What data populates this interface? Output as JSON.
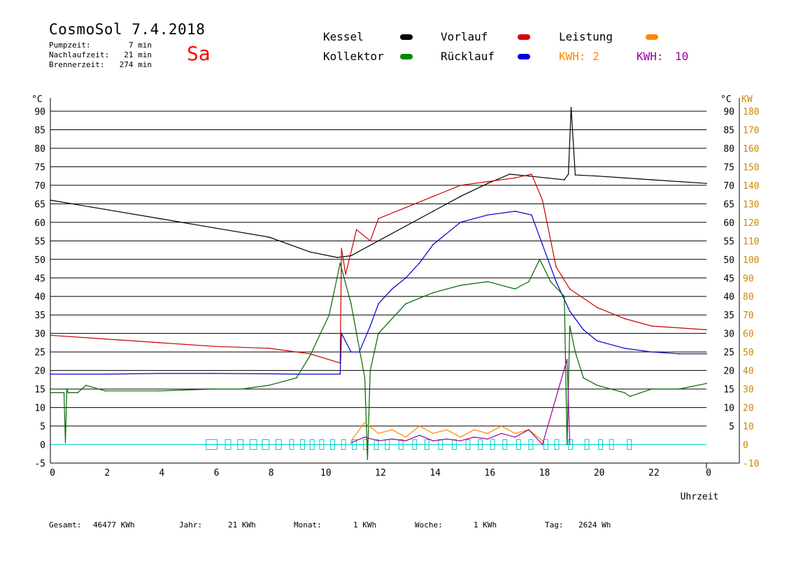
{
  "header": {
    "title": "CosmoSol 7.4.2018",
    "day": "Sa",
    "stats": [
      {
        "label": "Pumpzeit:",
        "value": "7 min"
      },
      {
        "label": "Nachlaufzeit:",
        "value": "21 min"
      },
      {
        "label": "Brennerzeit:",
        "value": "274 min"
      }
    ]
  },
  "legend": {
    "kessel": "Kessel",
    "vorlauf": "Vorlauf",
    "leistung": "Leistung",
    "kollektor": "Kollektor",
    "ruecklauf": "Rücklauf",
    "kwh1": "KWH: 2",
    "kwh2_label": "KWH:",
    "kwh2_value": "10"
  },
  "colors": {
    "kessel": "#000000",
    "vorlauf": "#cc0000",
    "ruecklauf": "#0000cc",
    "kollektor": "#006600",
    "leistung": "#ff8800",
    "kwh2": "#990099",
    "day": "#ff0000",
    "pump": "#00cccc",
    "right_axis": "#cc8800"
  },
  "footer": [
    {
      "label": "Gesamt:",
      "value": "46477 KWh"
    },
    {
      "label": "Jahr:",
      "value": "21 KWh"
    },
    {
      "label": "Monat:",
      "value": "1 KWh"
    },
    {
      "label": "Woche:",
      "value": "1 KWh"
    },
    {
      "label": "Tag:",
      "value": "2624 Wh"
    }
  ],
  "chart_data": {
    "type": "line",
    "xlabel": "Uhrzeit",
    "ylabel_left": "°C",
    "ylabel_right_temp": "°C",
    "ylabel_right_power": "KW",
    "xlim": [
      0,
      24
    ],
    "ylim": [
      -5,
      95
    ],
    "x_ticks": [
      "0",
      "2",
      "4",
      "6",
      "8",
      "10",
      "12",
      "14",
      "16",
      "18",
      "20",
      "22",
      "0"
    ],
    "y_ticks": [
      "-5",
      "0",
      "5",
      "10",
      "15",
      "20",
      "25",
      "30",
      "35",
      "40",
      "45",
      "50",
      "55",
      "60",
      "65",
      "70",
      "75",
      "80",
      "85",
      "90"
    ],
    "right_temp_ticks": [
      "5",
      "10",
      "15",
      "20",
      "25",
      "30",
      "35",
      "40",
      "45",
      "50",
      "55",
      "60",
      "65",
      "70",
      "75",
      "80",
      "85",
      "90"
    ],
    "right_power_ticks": [
      "-10",
      "0",
      "10",
      "20",
      "30",
      "40",
      "50",
      "60",
      "70",
      "80",
      "90",
      "100",
      "110",
      "120",
      "130",
      "140",
      "150",
      "160",
      "170",
      "180"
    ],
    "grid": true,
    "series": [
      {
        "name": "Kessel",
        "key": "kessel",
        "x": [
          0,
          2,
          4,
          6,
          8,
          9.5,
          10.5,
          11,
          12,
          13,
          14,
          15,
          16,
          16.8,
          17.5,
          18.8,
          18.95,
          19.05,
          19.2,
          20,
          22,
          24
        ],
        "y": [
          66,
          63.5,
          61,
          58.5,
          56,
          52,
          50.5,
          51,
          55,
          59,
          63,
          67,
          70.5,
          73,
          72.5,
          71.5,
          73,
          91,
          72.8,
          72.5,
          71.5,
          70.5
        ]
      },
      {
        "name": "Vorlauf",
        "key": "vorlauf",
        "x": [
          0,
          2,
          4,
          6,
          8,
          9.5,
          10.6,
          10.65,
          10.8,
          11.2,
          11.7,
          12,
          13,
          14,
          15,
          16,
          17,
          17.6,
          18,
          18.5,
          19,
          20,
          21,
          22,
          24
        ],
        "y": [
          29.5,
          28.5,
          27.5,
          26.5,
          26,
          24.5,
          22,
          53,
          46,
          58,
          55,
          61,
          64,
          67,
          70,
          71,
          72,
          73,
          66,
          48,
          42,
          37,
          34,
          32,
          31
        ]
      },
      {
        "name": "Rücklauf",
        "key": "ruecklauf",
        "x": [
          0,
          2,
          4,
          6,
          8,
          9,
          10.6,
          10.65,
          11,
          11.3,
          11.7,
          12,
          12.5,
          13,
          13.5,
          14,
          15,
          16,
          17,
          17.6,
          18,
          18.5,
          19,
          19.5,
          20,
          21,
          22,
          23,
          24
        ],
        "y": [
          19,
          19,
          19.2,
          19.2,
          19.1,
          19,
          19,
          30,
          25,
          25,
          32,
          38,
          42,
          45,
          49,
          54,
          60,
          62,
          63,
          62,
          54,
          44,
          36,
          31,
          28,
          26,
          25,
          24.5,
          24.5
        ]
      },
      {
        "name": "Kollektor",
        "key": "kollektor",
        "x": [
          0,
          0.5,
          0.55,
          0.6,
          0.65,
          1,
          1.3,
          2,
          4,
          6,
          7,
          8,
          9,
          9.5,
          10.2,
          10.6,
          11,
          11.5,
          11.6,
          11.7,
          12,
          13,
          14,
          15,
          16,
          17,
          17.5,
          17.9,
          18.3,
          18.8,
          18.9,
          19,
          19.2,
          19.5,
          20,
          21,
          21.2,
          22,
          23,
          24
        ],
        "y": [
          14,
          14,
          0.5,
          15,
          14,
          14,
          16,
          14.5,
          14.5,
          15,
          15,
          16,
          18,
          24,
          35,
          49,
          38,
          18,
          -4,
          20,
          30,
          38,
          41,
          43,
          44,
          42,
          44,
          50,
          44,
          40,
          0,
          32,
          25,
          18,
          16,
          14,
          13,
          15,
          15,
          16.5
        ]
      },
      {
        "name": "Leistung",
        "key": "leistung",
        "x": [
          11,
          11.5,
          12,
          12.5,
          13,
          13.5,
          14,
          14.5,
          15,
          15.5,
          16,
          16.5,
          17,
          17.5,
          18
        ],
        "y": [
          1,
          6,
          3,
          4,
          2,
          5,
          3,
          4,
          2,
          4,
          3,
          5,
          3,
          4,
          1
        ]
      },
      {
        "name": "KWH",
        "key": "kwh2",
        "x": [
          11,
          11.5,
          12,
          12.5,
          13,
          13.5,
          14,
          14.5,
          15,
          15.5,
          16,
          16.5,
          17,
          17.5,
          18,
          18.9,
          19.0
        ],
        "y": [
          0.5,
          2,
          1,
          1.5,
          1,
          2.5,
          1,
          1.5,
          1,
          2,
          1.5,
          3,
          2,
          4,
          0,
          23,
          0
        ]
      }
    ],
    "pump_on": [
      [
        5.7,
        6.1
      ],
      [
        6.4,
        6.6
      ],
      [
        6.85,
        7.05
      ],
      [
        7.3,
        7.55
      ],
      [
        7.75,
        8.0
      ],
      [
        8.25,
        8.45
      ],
      [
        8.75,
        8.9
      ],
      [
        9.15,
        9.3
      ],
      [
        9.5,
        9.65
      ],
      [
        9.85,
        10.0
      ],
      [
        10.25,
        10.4
      ],
      [
        10.65,
        10.8
      ],
      [
        11.05,
        11.2
      ],
      [
        11.45,
        11.6
      ],
      [
        11.85,
        12.0
      ],
      [
        12.25,
        12.4
      ],
      [
        12.75,
        12.9
      ],
      [
        13.25,
        13.4
      ],
      [
        13.7,
        13.85
      ],
      [
        14.2,
        14.35
      ],
      [
        14.7,
        14.85
      ],
      [
        15.2,
        15.35
      ],
      [
        15.65,
        15.8
      ],
      [
        16.1,
        16.25
      ],
      [
        16.55,
        16.7
      ],
      [
        17.05,
        17.2
      ],
      [
        17.5,
        17.65
      ],
      [
        18.05,
        18.2
      ],
      [
        18.45,
        18.6
      ],
      [
        18.95,
        19.1
      ],
      [
        19.55,
        19.7
      ],
      [
        20.05,
        20.2
      ],
      [
        20.45,
        20.6
      ],
      [
        21.1,
        21.25
      ]
    ]
  }
}
